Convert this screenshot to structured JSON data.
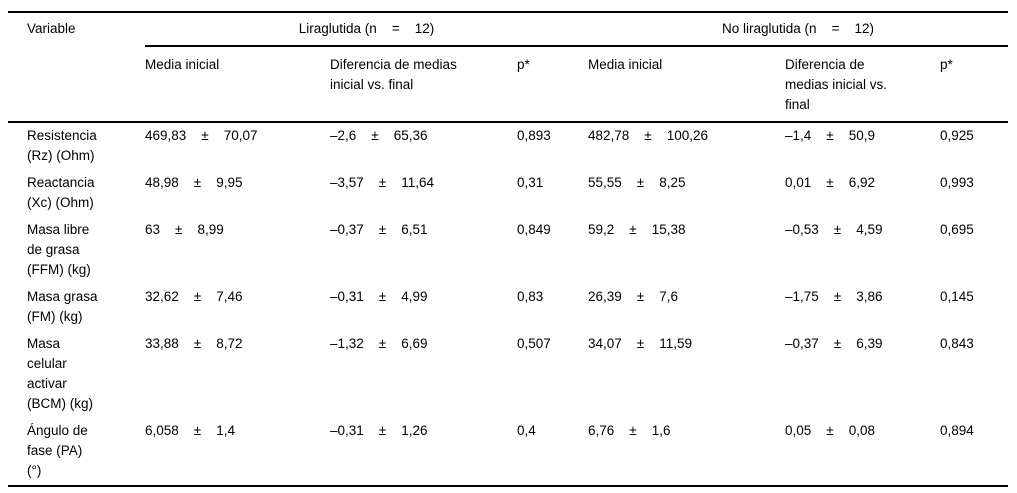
{
  "symbols": {
    "plus_minus": "±"
  },
  "table": {
    "variable_header": "Variable",
    "groups": [
      {
        "title": "Liraglutida (n    =    12)",
        "media": "Media inicial",
        "diff": "Diferencia de medias\ninicial vs. final",
        "p": "p*"
      },
      {
        "title": "No liraglutida (n    =    12)",
        "media": "Media inicial",
        "diff": "Diferencia de\nmedias inicial vs.\nfinal",
        "p": "p*"
      }
    ],
    "rows": [
      {
        "variable": "Resistencia\n(Rz) (Ohm)",
        "lira": {
          "mean_m": "469,83",
          "mean_sd": "70,07",
          "diff_m": "–2,6",
          "diff_sd": "65,36",
          "p": "0,893"
        },
        "nolira": {
          "mean_m": "482,78",
          "mean_sd": "100,26",
          "diff_m": "–1,4",
          "diff_sd": "50,9",
          "p": "0,925"
        }
      },
      {
        "variable": "Reactancia\n(Xc) (Ohm)",
        "lira": {
          "mean_m": "48,98",
          "mean_sd": "9,95",
          "diff_m": "–3,57",
          "diff_sd": "11,64",
          "p": "0,31"
        },
        "nolira": {
          "mean_m": "55,55",
          "mean_sd": "8,25",
          "diff_m": "0,01",
          "diff_sd": "6,92",
          "p": "0,993"
        }
      },
      {
        "variable": "Masa libre\nde grasa\n(FFM) (kg)",
        "lira": {
          "mean_m": "63",
          "mean_sd": "8,99",
          "diff_m": "–0,37",
          "diff_sd": "6,51",
          "p": "0,849"
        },
        "nolira": {
          "mean_m": "59,2",
          "mean_sd": "15,38",
          "diff_m": "–0,53",
          "diff_sd": "4,59",
          "p": "0,695"
        }
      },
      {
        "variable": "Masa grasa\n(FM) (kg)",
        "lira": {
          "mean_m": "32,62",
          "mean_sd": "7,46",
          "diff_m": "–0,31",
          "diff_sd": "4,99",
          "p": "0,83"
        },
        "nolira": {
          "mean_m": "26,39",
          "mean_sd": "7,6",
          "diff_m": "–1,75",
          "diff_sd": "3,86",
          "p": "0,145"
        }
      },
      {
        "variable": "Masa\ncelular\nactivar\n(BCM) (kg)",
        "lira": {
          "mean_m": "33,88",
          "mean_sd": "8,72",
          "diff_m": "–1,32",
          "diff_sd": "6,69",
          "p": "0,507"
        },
        "nolira": {
          "mean_m": "34,07",
          "mean_sd": "11,59",
          "diff_m": "–0,37",
          "diff_sd": "6,39",
          "p": "0,843"
        }
      },
      {
        "variable": "Ángulo de\nfase (PA)\n(°)",
        "lira": {
          "mean_m": "6,058",
          "mean_sd": "1,4",
          "diff_m": "–0,31",
          "diff_sd": "1,26",
          "p": "0,4"
        },
        "nolira": {
          "mean_m": "6,76",
          "mean_sd": "1,6",
          "diff_m": "0,05",
          "diff_sd": "0,08",
          "p": "0,894"
        }
      }
    ]
  }
}
